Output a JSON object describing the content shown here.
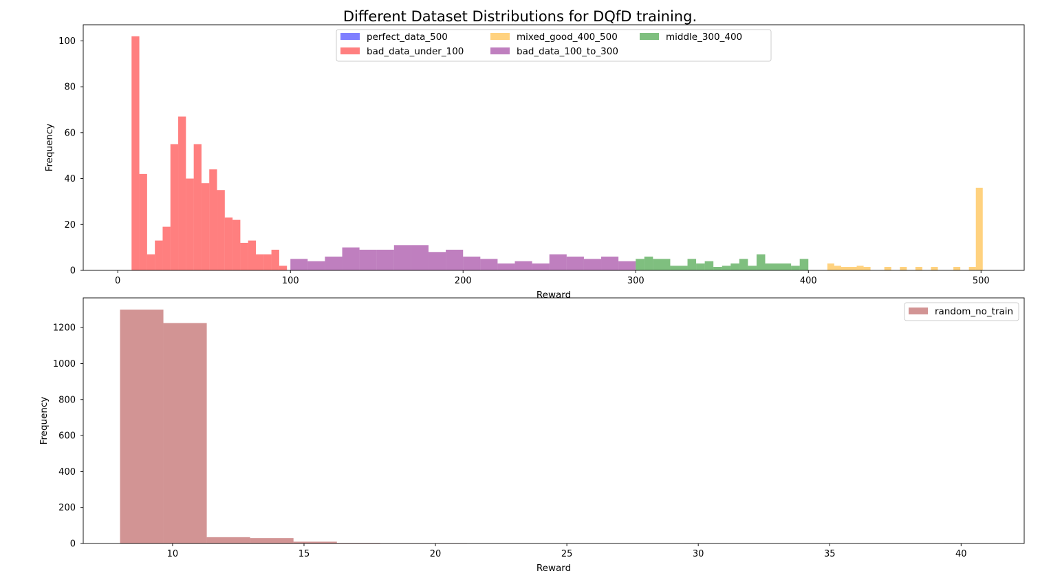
{
  "suptitle": "Different Dataset Distributions for DQfD training.",
  "colors": {
    "perfect_data_500": "#0000ff",
    "mixed_good_400_500": "#ffa500",
    "middle_300_400": "#008000",
    "bad_data_under_100": "#ff0000",
    "bad_data_100_to_300": "#800080",
    "random_no_train": "#a52a2a"
  },
  "chart_data": [
    {
      "type": "bar",
      "title": "",
      "xlabel": "Reward",
      "ylabel": "Frequency",
      "xlim": [
        -20,
        525
      ],
      "ylim": [
        0,
        107
      ],
      "xticks": [
        0,
        100,
        200,
        300,
        400,
        500
      ],
      "yticks": [
        0,
        20,
        40,
        60,
        80,
        100
      ],
      "legend": {
        "placement": "upper center",
        "columns": 3,
        "order": [
          "perfect_data_500",
          "mixed_good_400_500",
          "middle_300_400",
          "bad_data_under_100",
          "bad_data_100_to_300"
        ]
      },
      "series": [
        {
          "name": "perfect_data_500",
          "color": "#0000ff",
          "alpha": 0.5,
          "bins": []
        },
        {
          "name": "bad_data_under_100",
          "color": "#ff0000",
          "alpha": 0.5,
          "bins": [
            [
              8,
              12.5,
              102
            ],
            [
              12.5,
              17,
              42
            ],
            [
              17,
              21.5,
              7
            ],
            [
              21.5,
              26,
              13
            ],
            [
              26,
              30.5,
              19
            ],
            [
              30.5,
              35,
              55
            ],
            [
              35,
              39.5,
              67
            ],
            [
              39.5,
              44,
              40
            ],
            [
              44,
              48.5,
              55
            ],
            [
              48.5,
              53,
              38
            ],
            [
              53,
              57.5,
              44
            ],
            [
              57.5,
              62,
              35
            ],
            [
              62,
              66.5,
              23
            ],
            [
              66.5,
              71,
              22
            ],
            [
              71,
              75.5,
              12
            ],
            [
              75.5,
              80,
              13
            ],
            [
              80,
              84.5,
              7
            ],
            [
              84.5,
              89,
              7
            ],
            [
              89,
              93.5,
              9
            ],
            [
              93.5,
              98,
              2
            ]
          ]
        },
        {
          "name": "bad_data_100_to_300",
          "color": "#800080",
          "alpha": 0.5,
          "bins": [
            [
              100,
              110,
              5
            ],
            [
              110,
              120,
              4
            ],
            [
              120,
              130,
              6
            ],
            [
              130,
              140,
              10
            ],
            [
              140,
              150,
              9
            ],
            [
              150,
              160,
              9
            ],
            [
              160,
              170,
              11
            ],
            [
              170,
              180,
              11
            ],
            [
              180,
              190,
              8
            ],
            [
              190,
              200,
              9
            ],
            [
              200,
              210,
              6
            ],
            [
              210,
              220,
              5
            ],
            [
              220,
              230,
              3
            ],
            [
              230,
              240,
              4
            ],
            [
              240,
              250,
              3
            ],
            [
              250,
              260,
              7
            ],
            [
              260,
              270,
              6
            ],
            [
              270,
              280,
              5
            ],
            [
              280,
              290,
              6
            ],
            [
              290,
              300,
              4
            ]
          ]
        },
        {
          "name": "middle_300_400",
          "color": "#008000",
          "alpha": 0.5,
          "bins": [
            [
              300,
              305,
              5
            ],
            [
              305,
              310,
              6
            ],
            [
              310,
              320,
              5
            ],
            [
              320,
              330,
              2
            ],
            [
              330,
              335,
              5
            ],
            [
              335,
              340,
              3
            ],
            [
              340,
              345,
              4
            ],
            [
              345,
              350,
              1.5
            ],
            [
              350,
              355,
              2
            ],
            [
              355,
              360,
              3
            ],
            [
              360,
              365,
              5
            ],
            [
              365,
              370,
              2
            ],
            [
              370,
              375,
              7
            ],
            [
              375,
              390,
              3
            ],
            [
              390,
              395,
              2
            ],
            [
              395,
              400,
              5
            ]
          ]
        },
        {
          "name": "mixed_good_400_500",
          "color": "#ffa500",
          "alpha": 0.5,
          "bins": [
            [
              411,
              415,
              3
            ],
            [
              415,
              419,
              2
            ],
            [
              419,
              428,
              1.5
            ],
            [
              428,
              432,
              2
            ],
            [
              432,
              436,
              1.5
            ],
            [
              444,
              448,
              1.5
            ],
            [
              453,
              457,
              1.5
            ],
            [
              462,
              466,
              1.5
            ],
            [
              471,
              475,
              1.5
            ],
            [
              484,
              488,
              1.5
            ],
            [
              493,
              497,
              1.5
            ],
            [
              497,
              501,
              36
            ]
          ]
        }
      ]
    },
    {
      "type": "bar",
      "title": "",
      "xlabel": "Reward",
      "ylabel": "Frequency",
      "xlim": [
        6.6,
        42.4
      ],
      "ylim": [
        0,
        1365
      ],
      "xticks": [
        10,
        15,
        20,
        25,
        30,
        35,
        40
      ],
      "yticks": [
        0,
        200,
        400,
        600,
        800,
        1000,
        1200
      ],
      "legend": {
        "placement": "upper right"
      },
      "series": [
        {
          "name": "random_no_train",
          "color": "#a52a2a",
          "alpha": 0.5,
          "bins": [
            [
              8,
              9.65,
              1300
            ],
            [
              9.65,
              11.3,
              1225
            ],
            [
              11.3,
              12.95,
              35
            ],
            [
              12.95,
              14.6,
              30
            ],
            [
              14.6,
              16.25,
              10
            ],
            [
              16.25,
              17.9,
              3
            ],
            [
              17.9,
              19.55,
              2
            ],
            [
              19.55,
              21.2,
              2
            ],
            [
              21.2,
              22.85,
              0
            ],
            [
              22.85,
              24.5,
              1
            ],
            [
              24.5,
              26.15,
              1
            ],
            [
              26.15,
              27.8,
              1
            ],
            [
              27.8,
              29.45,
              0
            ],
            [
              29.45,
              31.1,
              1
            ],
            [
              31.1,
              32.75,
              0
            ],
            [
              32.75,
              34.4,
              0
            ],
            [
              34.4,
              36.05,
              0
            ],
            [
              36.05,
              37.7,
              1
            ],
            [
              37.7,
              39.35,
              0
            ],
            [
              39.35,
              41,
              1
            ]
          ]
        }
      ]
    }
  ]
}
